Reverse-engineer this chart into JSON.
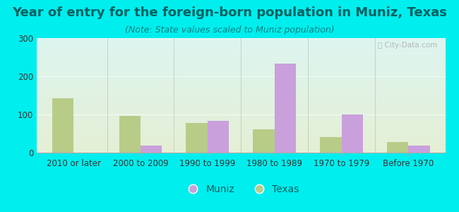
{
  "title": "Year of entry for the foreign-born population in Muniz, Texas",
  "subtitle": "(Note: State values scaled to Muniz population)",
  "categories": [
    "2010 or later",
    "2000 to 2009",
    "1990 to 1999",
    "1980 to 1989",
    "1970 to 1979",
    "Before 1970"
  ],
  "muniz_values": [
    0,
    18,
    83,
    233,
    100,
    18
  ],
  "texas_values": [
    143,
    97,
    77,
    62,
    40,
    27
  ],
  "muniz_color": "#c9a0dc",
  "texas_color": "#b8cc88",
  "background_color": "#00eeee",
  "plot_bg_top": "#ddf5f0",
  "plot_bg_bottom": "#e5efd5",
  "title_color": "#006060",
  "subtitle_color": "#008080",
  "tick_color": "#333333",
  "ylim": [
    0,
    300
  ],
  "yticks": [
    0,
    100,
    200,
    300
  ],
  "bar_width": 0.32,
  "title_fontsize": 13,
  "subtitle_fontsize": 9,
  "tick_fontsize": 8.5,
  "legend_fontsize": 10
}
